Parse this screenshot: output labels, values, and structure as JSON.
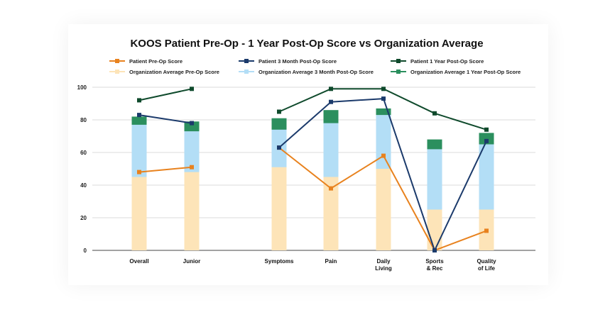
{
  "chart_data": {
    "type": "bar",
    "title": "KOOS Patient Pre-Op - 1 Year Post-Op Score vs Organization Average",
    "xlabel": "",
    "ylabel": "",
    "ylim": [
      0,
      100
    ],
    "yticks": [
      0,
      20,
      40,
      60,
      80,
      100
    ],
    "grid": true,
    "categories": [
      [
        "Overall"
      ],
      [
        "Junior"
      ],
      [
        "Symptoms"
      ],
      [
        "Pain"
      ],
      [
        "Daily",
        "Living"
      ],
      [
        "Sports",
        "& Rec"
      ],
      [
        "Quality",
        "of Life"
      ]
    ],
    "bar_series": [
      {
        "name": "Organization Average Pre-Op Score",
        "color": "#fde4b8",
        "values": [
          45,
          48,
          51,
          45,
          50,
          25,
          25
        ]
      },
      {
        "name": "Organization Average 3 Month Post-Op Score",
        "color": "#b3def6",
        "values": [
          77,
          73,
          74,
          78,
          83,
          62,
          65
        ]
      },
      {
        "name": "Organization Average 1 Year Post-Op Score",
        "color": "#2b8f5e",
        "values": [
          82,
          79,
          81,
          86,
          87,
          68,
          72
        ]
      }
    ],
    "line_series": [
      {
        "name": "Patient Pre-Op Score",
        "color": "#e8821e",
        "values": [
          48,
          51,
          63,
          38,
          58,
          0,
          12
        ]
      },
      {
        "name": "Patient 3 Month Post-Op Score",
        "color": "#1b3a6b",
        "values": [
          83,
          78,
          63,
          91,
          93,
          0,
          67
        ]
      },
      {
        "name": "Patient 1 Year Post-Op Score",
        "color": "#0f4a2c",
        "values": [
          92,
          99,
          85,
          99,
          99,
          84,
          74
        ]
      }
    ],
    "line_breaks_after": [
      1
    ],
    "legend": [
      {
        "label": "Patient Pre-Op Score",
        "color": "#e8821e",
        "kind": "line"
      },
      {
        "label": "Patient 3 Month Post-Op Score",
        "color": "#1b3a6b",
        "kind": "line"
      },
      {
        "label": "Patient 1 Year Post-Op Score",
        "color": "#0f4a2c",
        "kind": "line"
      },
      {
        "label": "Organization Average Pre-Op Score",
        "color": "#fde4b8",
        "kind": "bar"
      },
      {
        "label": "Organization Average 3 Month Post-Op Score",
        "color": "#b3def6",
        "kind": "bar"
      },
      {
        "label": "Organization Average 1 Year Post-Op Score",
        "color": "#2b8f5e",
        "kind": "bar"
      }
    ],
    "legend_position": "top"
  }
}
